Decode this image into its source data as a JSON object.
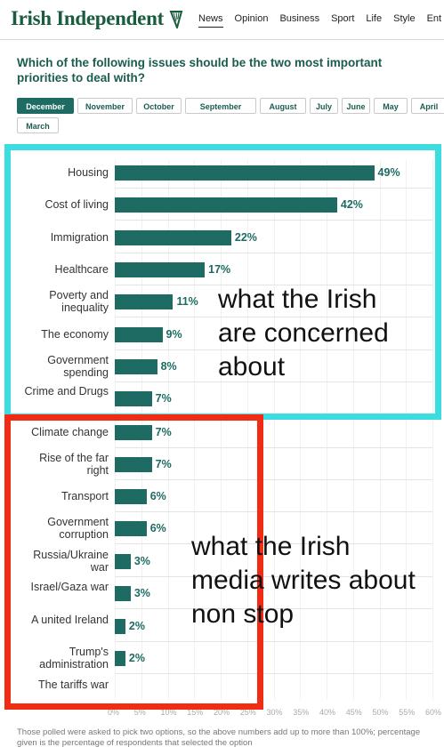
{
  "header": {
    "logo": "Irish Independent",
    "nav": [
      "News",
      "Opinion",
      "Business",
      "Sport",
      "Life",
      "Style",
      "Ent"
    ],
    "active_nav": 0
  },
  "question": "Which of the following issues should be the two most important priorities to deal with?",
  "months": [
    "December",
    "November",
    "October",
    "September",
    "August",
    "July",
    "June",
    "May",
    "April",
    "March"
  ],
  "active_month": 0,
  "chart_data": {
    "type": "bar",
    "orientation": "horizontal",
    "categories": [
      "Housing",
      "Cost of living",
      "Immigration",
      "Healthcare",
      "Poverty and inequality",
      "The economy",
      "Government spending",
      "Crime and Drugs",
      "Climate change",
      "Rise of the far right",
      "Transport",
      "Government corruption",
      "Russia/Ukraine war",
      "Israel/Gaza war",
      "A united Ireland",
      "Trump's administration",
      "The tariffs war"
    ],
    "values": [
      49,
      42,
      22,
      17,
      11,
      9,
      8,
      7,
      7,
      7,
      6,
      6,
      3,
      3,
      2,
      2,
      null
    ],
    "value_labels": [
      "49%",
      "42%",
      "22%",
      "17%",
      "11%",
      "9%",
      "8%",
      "7%",
      "7%",
      "7%",
      "6%",
      "6%",
      "3%",
      "3%",
      "2%",
      "2%",
      ""
    ],
    "xlim": [
      0,
      60
    ],
    "xticks": [
      "0%",
      "5%",
      "10%",
      "15%",
      "20%",
      "25%",
      "30%",
      "35%",
      "40%",
      "45%",
      "50%",
      "55%",
      "60%"
    ],
    "bar_color": "#1d6b62"
  },
  "annotations": {
    "cyan_text": "what the Irish\nare concerned\nabout",
    "red_text": "what the Irish\nmedia writes about\nnon stop",
    "cyan_color": "#3bdde0",
    "red_color": "#f02c14"
  },
  "footnote": "Those polled were asked to pick two options, so the above numbers add up to more than 100%; percentage given is the percentage of respondents that selected the option"
}
